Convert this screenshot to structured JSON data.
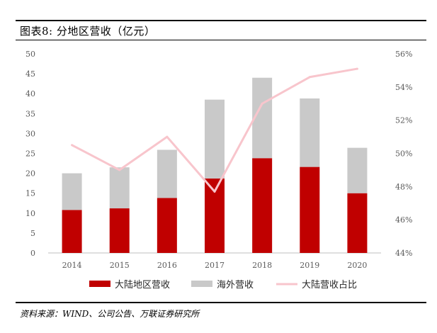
{
  "title": "图表8:  分地区营收（亿元）",
  "source": "资料来源：WIND、公司公告、万联证券研究所",
  "colors": {
    "mainland": "#C00000",
    "overseas": "#C9C9C9",
    "share_line": "#F8C5CC"
  },
  "chart_data": {
    "type": "bar",
    "stacked": true,
    "categories": [
      "2014",
      "2015",
      "2016",
      "2017",
      "2018",
      "2019",
      "2020"
    ],
    "series": [
      {
        "name": "大陆地区营收",
        "axis": "left",
        "values": [
          10.8,
          11.2,
          13.8,
          18.7,
          23.8,
          21.6,
          15.0
        ]
      },
      {
        "name": "海外营收",
        "axis": "left",
        "values": [
          9.2,
          10.3,
          12.1,
          19.8,
          20.2,
          17.2,
          11.4
        ]
      },
      {
        "name": "大陆营收占比",
        "type": "line",
        "axis": "right",
        "values": [
          50.5,
          49.0,
          51.0,
          47.7,
          53.0,
          54.6,
          55.1
        ]
      }
    ],
    "ylim": [
      0,
      50
    ],
    "yticks": [
      "0",
      "5",
      "10",
      "15",
      "20",
      "25",
      "30",
      "35",
      "40",
      "45",
      "50"
    ],
    "y2lim": [
      44,
      56
    ],
    "y2ticks": [
      "44%",
      "46%",
      "48%",
      "50%",
      "52%",
      "54%",
      "56%"
    ],
    "legend": {
      "position": "bottom"
    },
    "grid": false
  }
}
